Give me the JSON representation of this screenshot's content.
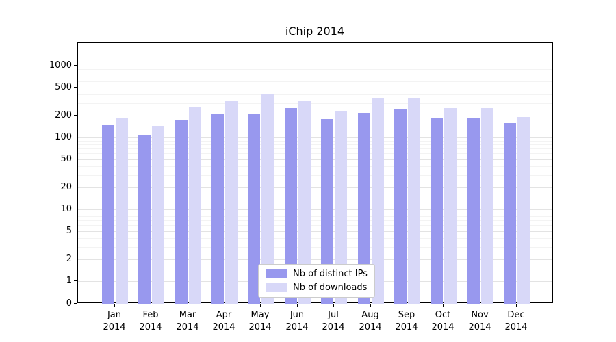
{
  "chart_data": {
    "type": "bar",
    "title": "iChip 2014",
    "categories": [
      "Jan 2014",
      "Feb 2014",
      "Mar 2014",
      "Apr 2014",
      "May 2014",
      "Jun 2014",
      "Jul 2014",
      "Aug 2014",
      "Sep 2014",
      "Oct 2014",
      "Nov 2014",
      "Dec 2014"
    ],
    "series": [
      {
        "name": "Nb of distinct IPs",
        "color": "#9898ee",
        "values": [
          150,
          110,
          175,
          215,
          210,
          255,
          180,
          220,
          245,
          190,
          185,
          160
        ]
      },
      {
        "name": "Nb of downloads",
        "color": "#d8d8f8",
        "values": [
          190,
          145,
          265,
          320,
          400,
          320,
          230,
          360,
          355,
          255,
          255,
          195
        ]
      }
    ],
    "yscale": "symlog",
    "yticks": [
      0,
      1,
      2,
      5,
      10,
      20,
      50,
      100,
      200,
      500,
      1000
    ],
    "ylim": [
      0,
      2000
    ],
    "grid": true,
    "legend_position": "lower center",
    "xlabel": "",
    "ylabel": ""
  }
}
